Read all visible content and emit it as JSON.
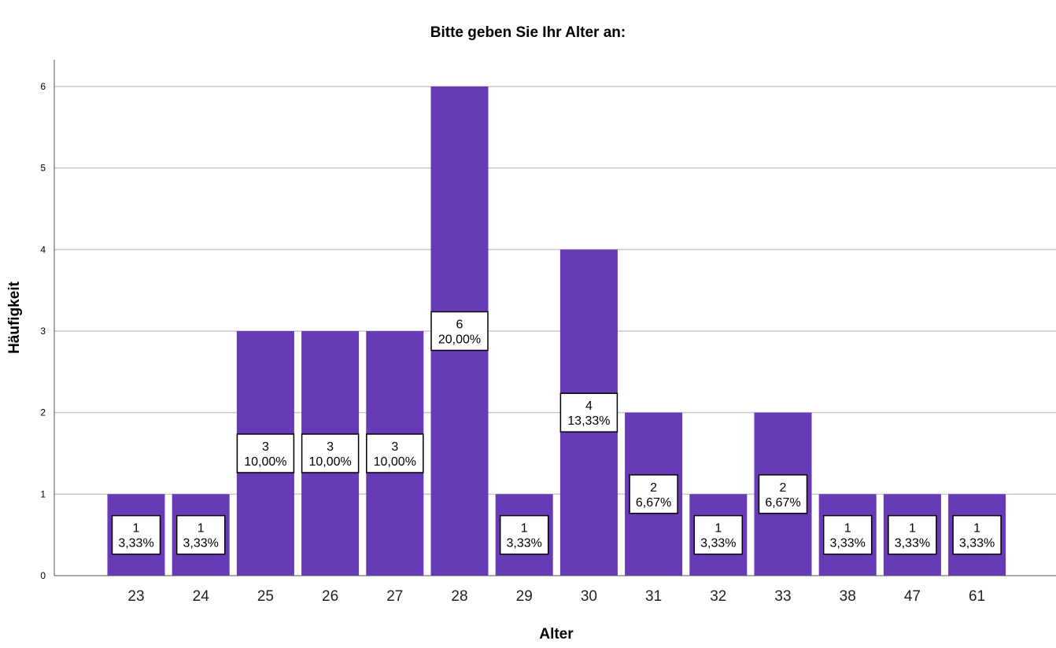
{
  "chart_data": {
    "type": "bar",
    "title": "Bitte geben Sie Ihr Alter an:",
    "xlabel": "Alter",
    "ylabel": "Häufigkeit",
    "ylim": [
      0,
      6
    ],
    "yticks": [
      "0",
      "1",
      "2",
      "3",
      "4",
      "5",
      "6"
    ],
    "categories": [
      "23",
      "24",
      "25",
      "26",
      "27",
      "28",
      "29",
      "30",
      "31",
      "32",
      "33",
      "38",
      "47",
      "61"
    ],
    "values": [
      1,
      1,
      3,
      3,
      3,
      6,
      1,
      4,
      2,
      1,
      2,
      1,
      1,
      1
    ],
    "percent_labels": [
      "3,33%",
      "3,33%",
      "10,00%",
      "10,00%",
      "10,00%",
      "20,00%",
      "3,33%",
      "13,33%",
      "6,67%",
      "3,33%",
      "6,67%",
      "3,33%",
      "3,33%",
      "3,33%"
    ],
    "grid": true,
    "legend": "none",
    "bar_color": "#673AB7"
  }
}
